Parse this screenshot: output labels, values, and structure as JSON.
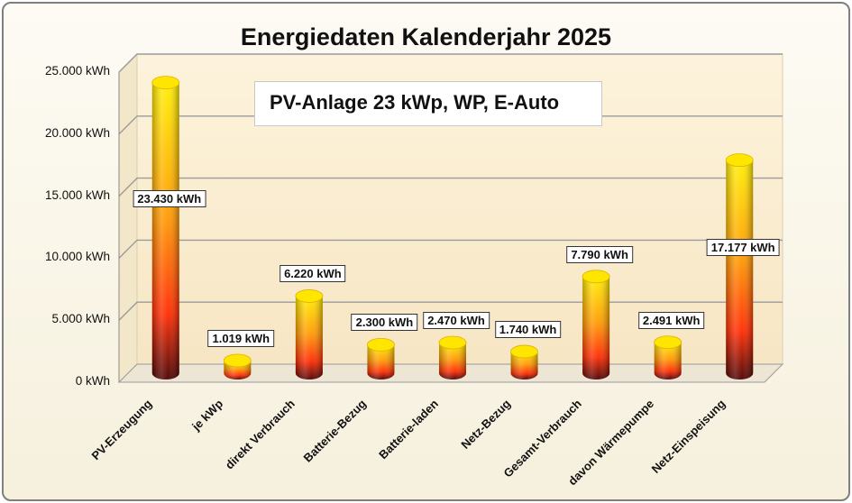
{
  "chart_data": {
    "type": "bar",
    "title": "Energiedaten Kalenderjahr 2025",
    "subtitle": "PV-Anlage 23 kWp, WP, E-Auto",
    "categories": [
      "PV-Erzeugung",
      "je kWp",
      "direkt Verbrauch",
      "Batterie-Bezug",
      "Batterie-laden",
      "Netz-Bezug",
      "Gesamt-Verbrauch",
      "davon Wärmepumpe",
      "Netz-Einspeisung"
    ],
    "values": [
      23430,
      1019,
      6220,
      2300,
      2470,
      1740,
      7790,
      2491,
      17177
    ],
    "data_labels": [
      "23.430 kWh",
      "1.019 kWh",
      "6.220 kWh",
      "2.300 kWh",
      "2.470 kWh",
      "1.740 kWh",
      "7.790 kWh",
      "2.491 kWh",
      "17.177 kWh"
    ],
    "yticks": [
      0,
      5000,
      10000,
      15000,
      20000,
      25000
    ],
    "ytick_labels": [
      "0 kWh",
      "5.000 kWh",
      "10.000 kWh",
      "15.000 kWh",
      "20.000 kWh",
      "25.000 kWh"
    ],
    "ylim": [
      0,
      25000
    ],
    "xlabel": "",
    "ylabel": "",
    "grid": true,
    "colors": {
      "top": "#ffee00",
      "middle": "#ff9900",
      "lower": "#ff2a00",
      "base": "#4a0000"
    }
  }
}
